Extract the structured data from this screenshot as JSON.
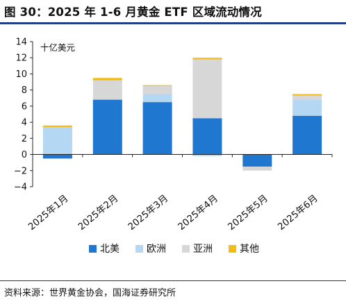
{
  "title": "图 30：2025 年 1-6 月黄金 ETF 区域流动情况",
  "source": "资料来源：世界黄金协会，国海证券研究所",
  "colors": {
    "north_america": "#1f77d0",
    "europe": "#b4d8f4",
    "asia": "#d7d7d7",
    "other": "#f4bd16",
    "rule": "#1f3e8c"
  },
  "chart_data": {
    "type": "bar",
    "stacked": true,
    "unit_label": "十亿美元",
    "categories": [
      "2025年1月",
      "2025年2月",
      "2025年3月",
      "2025年4月",
      "2025年5月",
      "2025年6月"
    ],
    "series": [
      {
        "name": "北美",
        "color": "#1f77d0",
        "values": [
          -0.5,
          6.8,
          6.5,
          4.5,
          -1.5,
          4.8
        ]
      },
      {
        "name": "欧洲",
        "color": "#b4d8f4",
        "values": [
          3.4,
          0.0,
          1.0,
          -0.2,
          0.0,
          2.0
        ]
      },
      {
        "name": "亚洲",
        "color": "#d7d7d7",
        "values": [
          0.0,
          2.4,
          1.0,
          7.3,
          -0.5,
          0.5
        ]
      },
      {
        "name": "其他",
        "color": "#f4bd16",
        "values": [
          0.2,
          0.3,
          0.1,
          0.2,
          0.0,
          0.2
        ]
      }
    ],
    "ylim": [
      -4,
      14
    ],
    "yticks": [
      -4,
      -2,
      0,
      2,
      4,
      6,
      8,
      10,
      12,
      14
    ],
    "legend": {
      "position": "bottom"
    },
    "grid": false
  }
}
